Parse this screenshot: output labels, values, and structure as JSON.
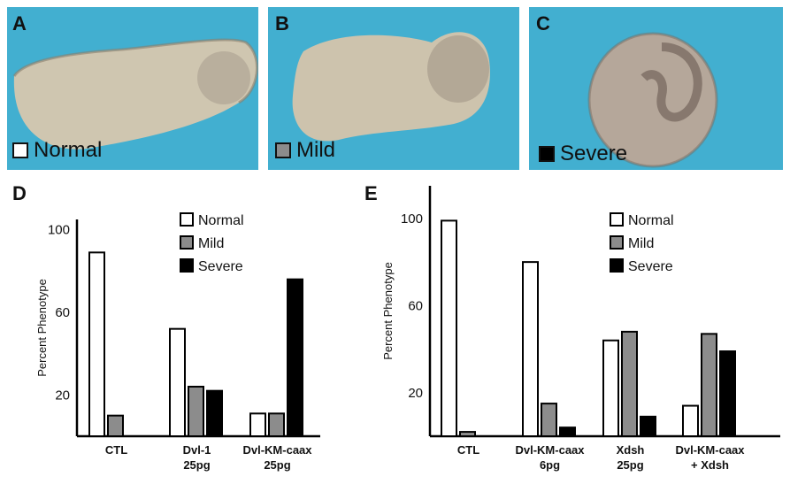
{
  "panels": [
    {
      "letter": "A",
      "label": "Normal",
      "swatch": "#ffffff"
    },
    {
      "letter": "B",
      "label": "Mild",
      "swatch": "#8c8c8c"
    },
    {
      "letter": "C",
      "label": "Severe",
      "swatch": "#000000"
    }
  ],
  "chart_data": [
    {
      "letter": "D",
      "type": "bar",
      "ylabel": "Percent Phenotype",
      "ylim": [
        0,
        105
      ],
      "yticks": [
        20,
        60,
        100
      ],
      "legend": {
        "placement": "top-right",
        "entries": [
          "Normal",
          "Mild",
          "Severe"
        ]
      },
      "categories": [
        [
          "CTL"
        ],
        [
          "Dvl-1",
          "25pg"
        ],
        [
          "Dvl-KM-caax",
          "25pg"
        ]
      ],
      "series": [
        {
          "name": "Normal",
          "color": "#ffffff",
          "values": [
            89,
            52,
            11
          ]
        },
        {
          "name": "Mild",
          "color": "#8c8c8c",
          "values": [
            10,
            24,
            11
          ]
        },
        {
          "name": "Severe",
          "color": "#000000",
          "values": [
            0,
            22,
            76
          ]
        }
      ]
    },
    {
      "letter": "E",
      "type": "bar",
      "ylabel": "Percent Phenotype",
      "ylim": [
        0,
        115
      ],
      "yticks": [
        20,
        60,
        100
      ],
      "legend": {
        "placement": "top-right",
        "entries": [
          "Normal",
          "Mild",
          "Severe"
        ]
      },
      "categories": [
        [
          "CTL"
        ],
        [
          "Dvl-KM-caax",
          "6pg"
        ],
        [
          "Xdsh",
          "25pg"
        ],
        [
          "Dvl-KM-caax",
          "+ Xdsh"
        ]
      ],
      "series": [
        {
          "name": "Normal",
          "color": "#ffffff",
          "values": [
            99,
            80,
            44,
            14
          ]
        },
        {
          "name": "Mild",
          "color": "#8c8c8c",
          "values": [
            2,
            15,
            48,
            47
          ]
        },
        {
          "name": "Severe",
          "color": "#000000",
          "values": [
            0,
            4,
            9,
            39
          ]
        }
      ]
    }
  ]
}
